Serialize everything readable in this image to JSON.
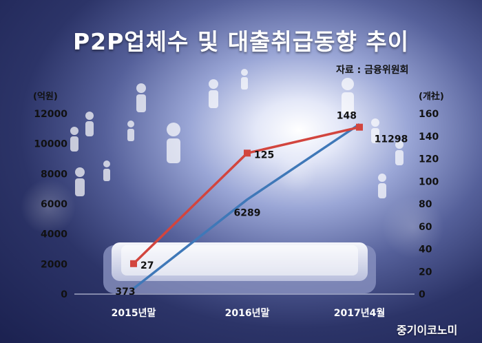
{
  "title": "P2P업체수 및 대출취급동향 추이",
  "source": "자료 : 금융위원회",
  "brand": "중기이코노미",
  "chart_data": {
    "type": "line",
    "categories": [
      "2015년말",
      "2016년말",
      "2017년4월"
    ],
    "left_axis": {
      "unit_label": "(억원)",
      "ticks": [
        "0",
        "2000",
        "4000",
        "6000",
        "8000",
        "10000",
        "12000"
      ],
      "range": [
        0,
        12000
      ]
    },
    "right_axis": {
      "unit_label": "(개社)",
      "ticks": [
        "0",
        "20",
        "40",
        "60",
        "80",
        "100",
        "120",
        "140",
        "160"
      ],
      "range": [
        0,
        160
      ]
    },
    "series": [
      {
        "axis": "left",
        "color": "#3f78b8",
        "values": [
          373,
          6289,
          11298
        ],
        "labels": [
          "373",
          "6289",
          "11298"
        ]
      },
      {
        "axis": "right",
        "color": "#d2453e",
        "values": [
          27,
          125,
          148
        ],
        "labels": [
          "27",
          "125",
          "148"
        ]
      }
    ]
  }
}
